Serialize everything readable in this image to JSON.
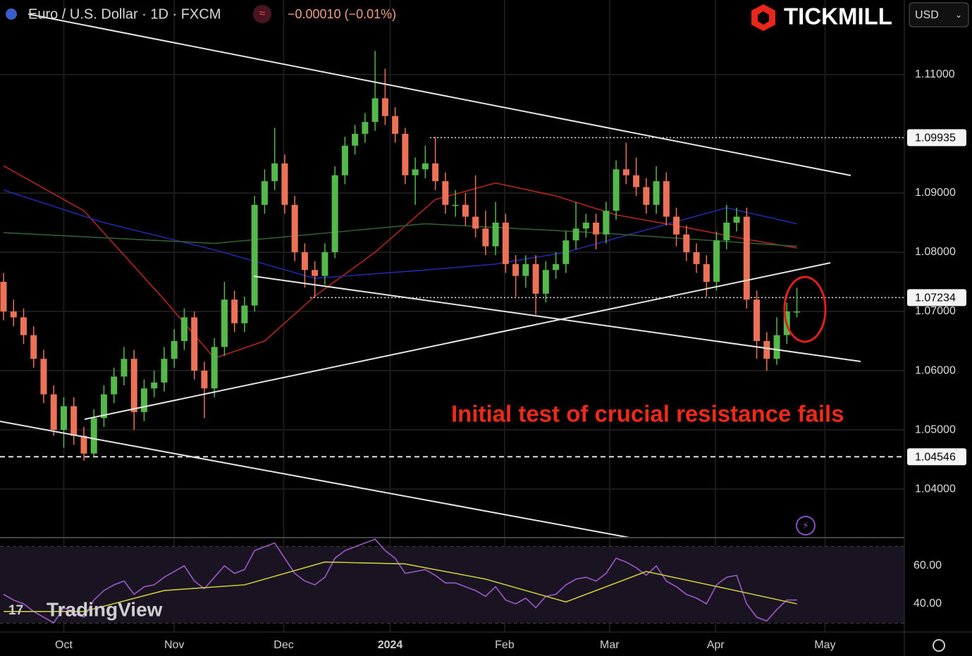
{
  "chart_data": {
    "type": "candlestick",
    "title": "Euro / U.S. Dollar · 1D · FXCM",
    "change": "−0.00010 (−0.01%)",
    "brand": "TICKMILL",
    "currency": "USD",
    "watermark": "TradingView",
    "annotation": "Initial test of crucial resistance fails",
    "up_color": "#55b84b",
    "down_color": "#ec7257",
    "grid": true,
    "xlim": [
      -0.35,
      89.7
    ],
    "xticks": [
      {
        "value": 6.0,
        "label": "Oct"
      },
      {
        "value": 17.0,
        "label": "Nov"
      },
      {
        "value": 27.9,
        "label": "Dec"
      },
      {
        "value": 38.5,
        "label": "2024"
      },
      {
        "value": 49.9,
        "label": "Feb"
      },
      {
        "value": 60.35,
        "label": "Mar"
      },
      {
        "value": 70.9,
        "label": "Apr"
      },
      {
        "value": 81.8,
        "label": "May"
      }
    ],
    "ylim": [
      1.0318,
      1.1226
    ],
    "yticks": [
      {
        "value": 1.11,
        "label": "1.11000"
      },
      {
        "value": 1.09,
        "label": "1.09000"
      },
      {
        "value": 1.08,
        "label": "1.08000"
      },
      {
        "value": 1.07,
        "label": "1.07000"
      },
      {
        "value": 1.06,
        "label": "1.06000"
      },
      {
        "value": 1.05,
        "label": "1.05000"
      },
      {
        "value": 1.04,
        "label": "1.04000"
      }
    ],
    "open": [
      1.075,
      1.07,
      1.069,
      1.066,
      1.062,
      1.056,
      1.05,
      1.054,
      1.049,
      1.046,
      1.052,
      1.056,
      1.059,
      1.062,
      1.053,
      1.057,
      1.058,
      1.062,
      1.065,
      1.069,
      1.06,
      1.057,
      1.064,
      1.072,
      1.068,
      1.071,
      1.088,
      1.092,
      1.095,
      1.088,
      1.08,
      1.077,
      1.076,
      1.08,
      1.093,
      1.098,
      1.1,
      1.102,
      1.106,
      1.103,
      1.1,
      1.093,
      1.094,
      1.095,
      1.092,
      1.088,
      1.088,
      1.086,
      1.084,
      1.081,
      1.085,
      1.078,
      1.076,
      1.078,
      1.073,
      1.077,
      1.078,
      1.082,
      1.084,
      1.085,
      1.083,
      1.087,
      1.094,
      1.093,
      1.091,
      1.088,
      1.092,
      1.086,
      1.083,
      1.08,
      1.078,
      1.075,
      1.082,
      1.085,
      1.086,
      1.072,
      1.065,
      1.062,
      1.066,
      1.07
    ],
    "high": [
      1.0765,
      1.072,
      1.0705,
      1.0675,
      1.0635,
      1.0575,
      1.0555,
      1.0555,
      1.0505,
      1.0535,
      1.0575,
      1.0605,
      1.064,
      1.0635,
      1.0585,
      1.06,
      1.064,
      1.067,
      1.0705,
      1.07,
      1.0615,
      1.0655,
      1.075,
      1.0735,
      1.0725,
      1.0895,
      1.094,
      1.101,
      1.0965,
      1.0895,
      1.0815,
      1.0785,
      1.0815,
      1.0945,
      1.0995,
      1.1015,
      1.1035,
      1.114,
      1.111,
      1.1045,
      1.101,
      1.096,
      1.098,
      1.0995,
      1.0935,
      1.0905,
      1.09,
      1.093,
      1.087,
      1.0885,
      1.0865,
      1.0795,
      1.0795,
      1.0795,
      1.0785,
      1.08,
      1.0835,
      1.0885,
      1.0865,
      1.0865,
      1.0885,
      1.0955,
      1.0985,
      1.096,
      1.0925,
      1.0945,
      1.0935,
      1.0875,
      1.0845,
      1.0815,
      1.0795,
      1.0835,
      1.088,
      1.0875,
      1.0875,
      1.0735,
      1.0665,
      1.069,
      1.0715,
      1.074
    ],
    "low": [
      1.0685,
      1.0675,
      1.0645,
      1.0605,
      1.0545,
      1.049,
      1.047,
      1.0475,
      1.0448,
      1.0455,
      1.0505,
      1.0545,
      1.0575,
      1.05,
      1.0515,
      1.0555,
      1.0565,
      1.0605,
      1.0635,
      1.0585,
      1.052,
      1.0555,
      1.0625,
      1.0665,
      1.0665,
      1.07,
      1.0865,
      1.0905,
      1.0865,
      1.0785,
      1.074,
      1.0725,
      1.0745,
      1.079,
      1.0915,
      1.0965,
      1.0985,
      1.1005,
      1.1015,
      1.0985,
      1.0915,
      1.088,
      1.0925,
      1.0905,
      1.0865,
      1.086,
      1.0845,
      1.0825,
      1.0795,
      1.0795,
      1.0765,
      1.0725,
      1.074,
      1.0695,
      1.0715,
      1.0755,
      1.0765,
      1.0805,
      1.0825,
      1.0805,
      1.0815,
      1.0855,
      1.0915,
      1.0895,
      1.0865,
      1.0865,
      1.0845,
      1.081,
      1.0785,
      1.0765,
      1.0725,
      1.0735,
      1.0805,
      1.0835,
      1.0705,
      1.062,
      1.06,
      1.061,
      1.0645,
      1.069
    ],
    "close": [
      1.07,
      1.069,
      1.066,
      1.062,
      1.056,
      1.05,
      1.054,
      1.049,
      1.046,
      1.052,
      1.056,
      1.059,
      1.062,
      1.053,
      1.057,
      1.058,
      1.062,
      1.065,
      1.069,
      1.06,
      1.057,
      1.064,
      1.072,
      1.068,
      1.071,
      1.088,
      1.092,
      1.095,
      1.088,
      1.08,
      1.077,
      1.076,
      1.08,
      1.093,
      1.098,
      1.1,
      1.102,
      1.106,
      1.103,
      1.1,
      1.093,
      1.094,
      1.095,
      1.092,
      1.088,
      1.088,
      1.086,
      1.084,
      1.081,
      1.085,
      1.078,
      1.076,
      1.078,
      1.073,
      1.077,
      1.078,
      1.082,
      1.084,
      1.085,
      1.083,
      1.087,
      1.094,
      1.093,
      1.091,
      1.088,
      1.092,
      1.086,
      1.083,
      1.08,
      1.078,
      1.075,
      1.082,
      1.085,
      1.086,
      1.072,
      1.065,
      1.062,
      1.066,
      1.07,
      1.07
    ],
    "moving_averages": [
      {
        "color": "#b3261e",
        "x": [
          0,
          8,
          16,
          21,
          26,
          31,
          37,
          43,
          49,
          55,
          61,
          67,
          73,
          79
        ],
        "values": [
          1.0946,
          1.087,
          1.072,
          1.0621,
          1.065,
          1.0726,
          1.08,
          1.0889,
          1.0917,
          1.0895,
          1.0863,
          1.0845,
          1.0825,
          1.0807
        ]
      },
      {
        "color": "#1f2aa8",
        "x": [
          0,
          10,
          21,
          31,
          42,
          49,
          56,
          63,
          72,
          79
        ],
        "values": [
          1.0905,
          1.085,
          1.0804,
          1.0756,
          1.077,
          1.078,
          1.08,
          1.0833,
          1.0875,
          1.0848
        ]
      },
      {
        "color": "#2f5e2f",
        "x": [
          0,
          21,
          42,
          59,
          79
        ],
        "values": [
          1.0833,
          1.0815,
          1.0848,
          1.0833,
          1.081
        ]
      }
    ],
    "levels": [
      {
        "value": 1.09935,
        "label": "1.09935",
        "style": "dotted"
      },
      {
        "value": 1.07234,
        "label": "1.07234",
        "style": "dotted"
      },
      {
        "value": 1.04546,
        "label": "1.04546",
        "style": "dashed"
      }
    ],
    "rsi": {
      "ylim": [
        25.2,
        74.8
      ],
      "yticks": [
        {
          "value": 60,
          "label": "60.00"
        },
        {
          "value": 40,
          "label": "40.00"
        }
      ],
      "bands": [
        70,
        30
      ],
      "color": "#9b59c9",
      "values": [
        45,
        42,
        40,
        36,
        33,
        30,
        38,
        35,
        33,
        42,
        47,
        50,
        52,
        45,
        49,
        50,
        54,
        57,
        60,
        52,
        48,
        54,
        60,
        56,
        58,
        68,
        70,
        72,
        64,
        56,
        52,
        50,
        54,
        64,
        68,
        70,
        72,
        74,
        68,
        64,
        56,
        57,
        58,
        55,
        51,
        51,
        49,
        47,
        44,
        49,
        42,
        40,
        43,
        38,
        44,
        45,
        50,
        53,
        54,
        52,
        56,
        64,
        62,
        59,
        55,
        60,
        52,
        49,
        45,
        43,
        40,
        50,
        54,
        55,
        40,
        33,
        31,
        37,
        42,
        42
      ],
      "ma_color": "#c8c83a",
      "ma_x": [
        0,
        8,
        16,
        24,
        32,
        40,
        48,
        56,
        64,
        72,
        79
      ],
      "ma_values": [
        36,
        36,
        47,
        50,
        62,
        61,
        53,
        41,
        57,
        48,
        40
      ]
    }
  }
}
